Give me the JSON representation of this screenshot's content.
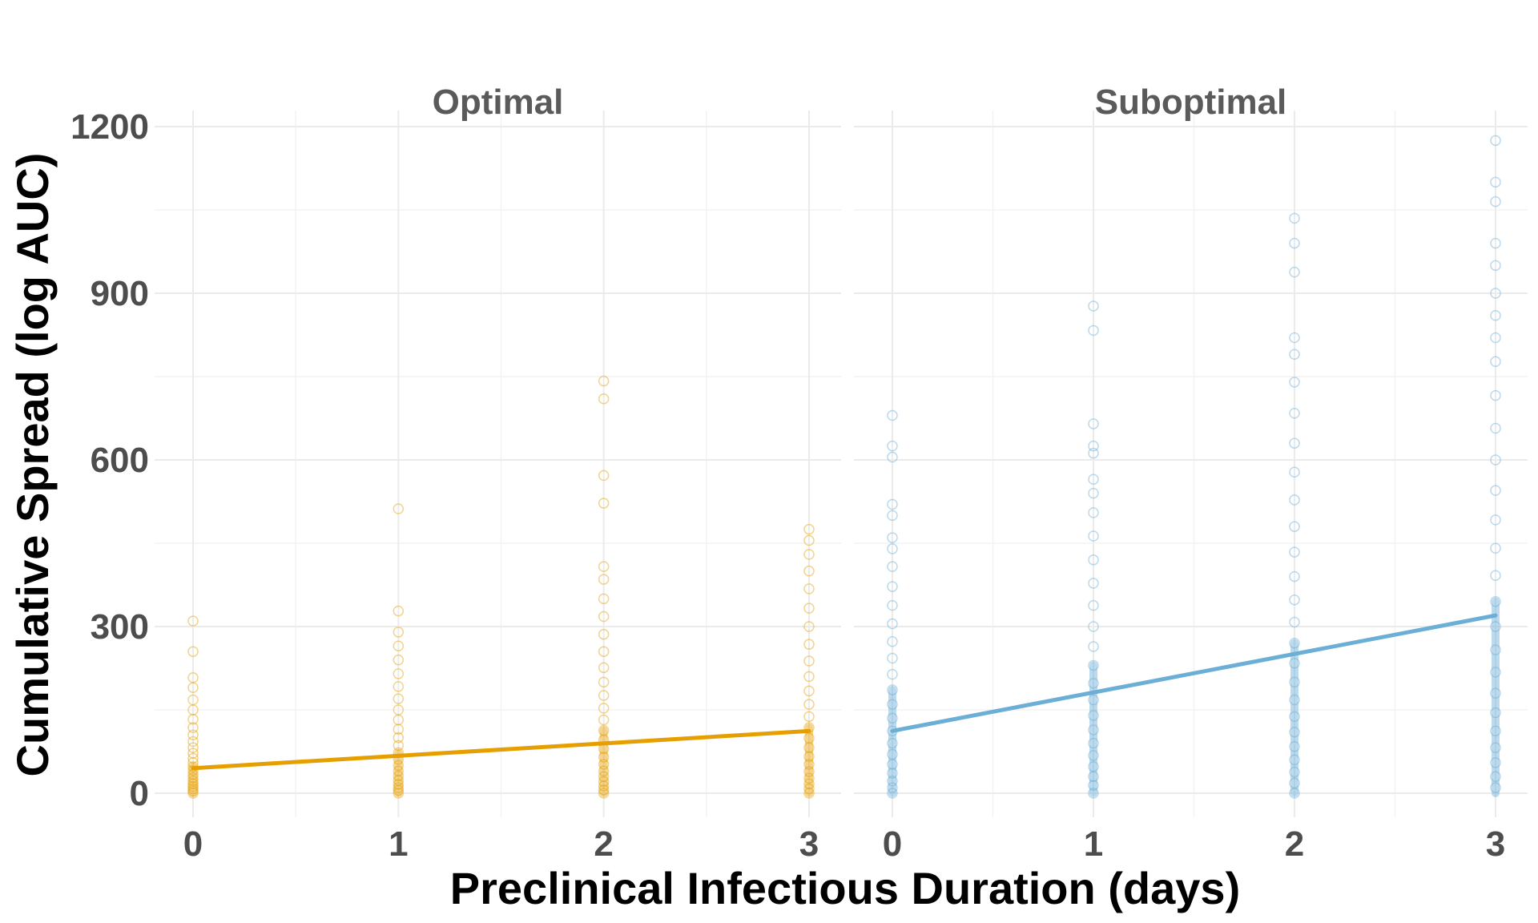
{
  "chart_data": {
    "type": "scatter",
    "title": "",
    "xlabel": "Preclinical Infectious Duration (days)",
    "ylabel": "Cumulative Spread (log AUC)",
    "xlim": [
      0,
      3
    ],
    "ylim": [
      0,
      1200
    ],
    "x_ticks": [
      "0",
      "1",
      "2",
      "3"
    ],
    "y_ticks": [
      "0",
      "300",
      "600",
      "900",
      "1200"
    ],
    "grid": true,
    "legend": "none",
    "facets": [
      {
        "label": "Optimal",
        "color": "#E69F00",
        "trend_line": {
          "x": [
            0,
            3
          ],
          "y": [
            45,
            112
          ]
        },
        "points": [
          {
            "x": 0,
            "values": [
              0,
              4,
              8,
              12,
              17,
              22,
              28,
              34,
              41,
              48,
              55,
              63,
              72,
              82,
              93,
              105,
              118,
              133,
              150,
              168,
              190,
              208,
              255,
              310
            ]
          },
          {
            "x": 1,
            "values": [
              0,
              5,
              10,
              16,
              23,
              31,
              40,
              50,
              61,
              73,
              86,
              100,
              115,
              132,
              150,
              170,
              192,
              215,
              240,
              265,
              290,
              328,
              512
            ]
          },
          {
            "x": 2,
            "values": [
              0,
              6,
              13,
              21,
              30,
              40,
              52,
              65,
              80,
              96,
              113,
              132,
              153,
              176,
              200,
              226,
              255,
              286,
              318,
              350,
              385,
              408,
              522,
              572,
              710,
              742
            ]
          },
          {
            "x": 3,
            "values": [
              0,
              8,
              17,
              27,
              39,
              52,
              66,
              82,
              99,
              118,
              138,
              160,
              184,
              210,
              238,
              268,
              300,
              333,
              368,
              400,
              430,
              455,
              475
            ]
          }
        ]
      },
      {
        "label": "Suboptimal",
        "color": "#6BAED6",
        "trend_line": {
          "x": [
            0,
            3
          ],
          "y": [
            112,
            320
          ]
        },
        "points": [
          {
            "x": 0,
            "values": [
              0,
              10,
              22,
              36,
              52,
              70,
              90,
              112,
              135,
              160,
              186,
              214,
              243,
              273,
              305,
              338,
              372,
              408,
              440,
              460,
              500,
              520,
              605,
              625,
              680
            ]
          },
          {
            "x": 1,
            "values": [
              0,
              14,
              30,
              48,
              68,
              90,
              114,
              140,
              168,
              198,
              230,
              264,
              300,
              338,
              378,
              420,
              463,
              505,
              540,
              565,
              612,
              625,
              665,
              833,
              877
            ]
          },
          {
            "x": 2,
            "values": [
              0,
              18,
              38,
              60,
              84,
              110,
              138,
              168,
              200,
              234,
              270,
              308,
              348,
              390,
              434,
              480,
              528,
              578,
              630,
              684,
              740,
              790,
              820,
              938,
              990,
              1035
            ]
          },
          {
            "x": 3,
            "values": [
              10,
              30,
              55,
              82,
              112,
              145,
              180,
              218,
              258,
              300,
              345,
              392,
              441,
              492,
              545,
              600,
              657,
              716,
              777,
              820,
              860,
              900,
              950,
              990,
              1065,
              1100,
              1175
            ]
          }
        ]
      }
    ]
  }
}
